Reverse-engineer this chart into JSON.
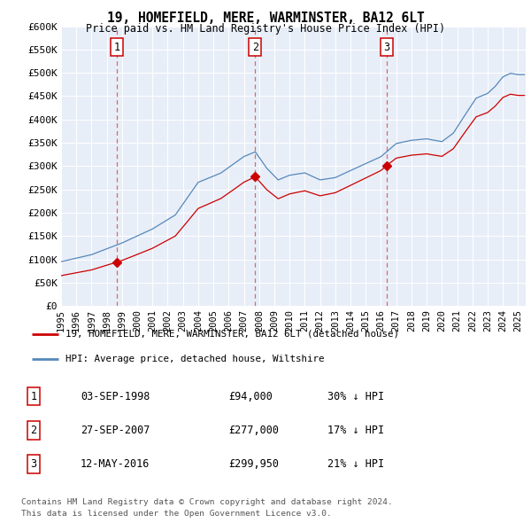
{
  "title": "19, HOMEFIELD, MERE, WARMINSTER, BA12 6LT",
  "subtitle": "Price paid vs. HM Land Registry's House Price Index (HPI)",
  "plot_bg_color": "#e8eef8",
  "ylabel_color": "#222222",
  "ylim": [
    0,
    600000
  ],
  "yticks": [
    0,
    50000,
    100000,
    150000,
    200000,
    250000,
    300000,
    350000,
    400000,
    450000,
    500000,
    550000,
    600000
  ],
  "ytick_labels": [
    "£0",
    "£50K",
    "£100K",
    "£150K",
    "£200K",
    "£250K",
    "£300K",
    "£350K",
    "£400K",
    "£450K",
    "£500K",
    "£550K",
    "£600K"
  ],
  "sales": [
    {
      "num": 1,
      "date_x": 1998.67,
      "price": 94000,
      "date_str": "03-SEP-1998",
      "price_str": "£94,000",
      "hpi_diff": "30% ↓ HPI"
    },
    {
      "num": 2,
      "date_x": 2007.74,
      "price": 277000,
      "date_str": "27-SEP-2007",
      "price_str": "£277,000",
      "hpi_diff": "17% ↓ HPI"
    },
    {
      "num": 3,
      "date_x": 2016.36,
      "price": 299950,
      "date_str": "12-MAY-2016",
      "price_str": "£299,950",
      "hpi_diff": "21% ↓ HPI"
    }
  ],
  "red_line_color": "#cc0000",
  "blue_line_color": "#5588bb",
  "legend_label_red": "19, HOMEFIELD, MERE, WARMINSTER, BA12 6LT (detached house)",
  "legend_label_blue": "HPI: Average price, detached house, Wiltshire",
  "footer1": "Contains HM Land Registry data © Crown copyright and database right 2024.",
  "footer2": "This data is licensed under the Open Government Licence v3.0.",
  "xlim": [
    1995.0,
    2025.5
  ],
  "xtick_years": [
    1995,
    1996,
    1997,
    1998,
    1999,
    2000,
    2001,
    2002,
    2003,
    2004,
    2005,
    2006,
    2007,
    2008,
    2009,
    2010,
    2011,
    2012,
    2013,
    2014,
    2015,
    2016,
    2017,
    2018,
    2019,
    2020,
    2021,
    2022,
    2023,
    2024,
    2025
  ]
}
